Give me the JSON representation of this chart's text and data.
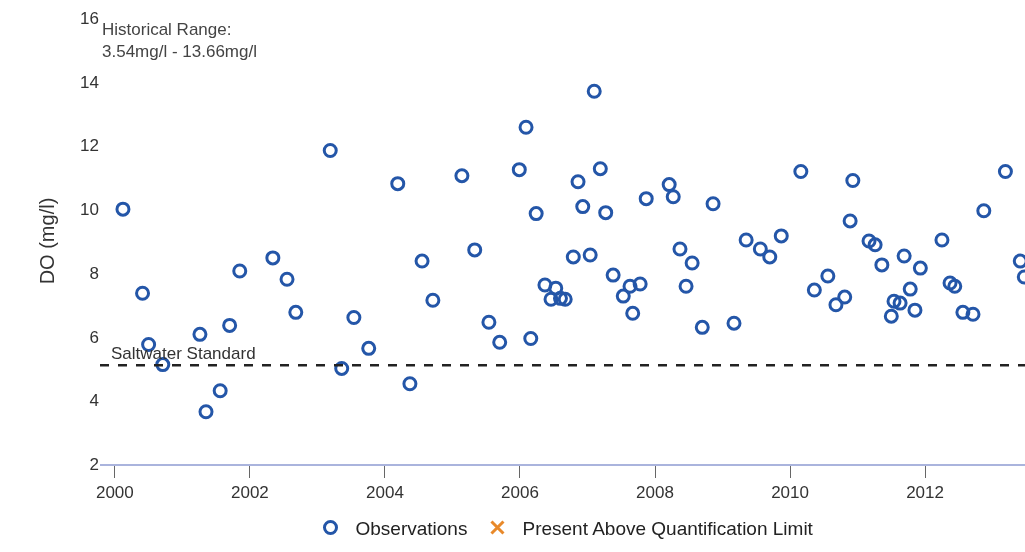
{
  "chart_data": {
    "type": "scatter",
    "ylabel": "DO (mg/l)",
    "annotations": [
      "Historical Range:\n3.54mg/l - 13.66mg/l"
    ],
    "xlim": [
      1999.78,
      2013.48
    ],
    "xticks": [
      2000,
      2002,
      2004,
      2006,
      2008,
      2010,
      2012
    ],
    "ylim": [
      2,
      16
    ],
    "yticks": [
      2,
      4,
      6,
      8,
      10,
      12,
      14,
      16
    ],
    "grid": false,
    "legend": "bottom",
    "marker": "circle",
    "ref_lines": [
      {
        "axis": "y",
        "value": 5.1,
        "label": "Saltwater Standard",
        "color": "#222222",
        "line_style": "dashed"
      }
    ],
    "series": [
      {
        "name": "Observations",
        "color": "#2456a8",
        "x": [
          2000.12,
          2000.41,
          2000.5,
          2000.71,
          2001.26,
          2001.35,
          2001.56,
          2001.7,
          2001.85,
          2002.34,
          2002.55,
          2002.68,
          2003.19,
          2003.36,
          2003.54,
          2003.76,
          2004.19,
          2004.37,
          2004.55,
          2004.71,
          2005.14,
          2005.33,
          2005.54,
          2005.7,
          2005.99,
          2006.09,
          2006.16,
          2006.24,
          2006.37,
          2006.46,
          2006.53,
          2006.6,
          2006.67,
          2006.79,
          2006.86,
          2006.93,
          2007.04,
          2007.1,
          2007.19,
          2007.27,
          2007.38,
          2007.53,
          2007.63,
          2007.67,
          2007.78,
          2007.87,
          2008.21,
          2008.27,
          2008.37,
          2008.46,
          2008.55,
          2008.7,
          2008.86,
          2009.17,
          2009.35,
          2009.56,
          2009.7,
          2009.87,
          2010.16,
          2010.36,
          2010.56,
          2010.68,
          2010.81,
          2010.89,
          2010.93,
          2011.17,
          2011.26,
          2011.36,
          2011.5,
          2011.54,
          2011.63,
          2011.69,
          2011.78,
          2011.85,
          2011.93,
          2012.25,
          2012.37,
          2012.44,
          2012.56,
          2012.71,
          2012.87,
          2013.19,
          2013.41,
          2013.47
        ],
        "values": [
          10.0,
          7.36,
          5.75,
          5.12,
          6.07,
          3.64,
          4.3,
          6.35,
          8.06,
          8.47,
          7.8,
          6.76,
          11.84,
          5.0,
          6.6,
          5.63,
          10.8,
          4.52,
          8.37,
          7.14,
          11.05,
          8.72,
          6.45,
          5.82,
          11.24,
          12.57,
          5.94,
          9.86,
          7.62,
          7.17,
          7.52,
          7.2,
          7.17,
          8.5,
          10.86,
          10.08,
          8.56,
          13.7,
          11.27,
          9.89,
          7.93,
          7.27,
          7.58,
          6.73,
          7.65,
          10.33,
          10.77,
          10.39,
          8.75,
          7.58,
          8.31,
          6.29,
          10.17,
          6.42,
          9.03,
          8.75,
          8.5,
          9.16,
          11.18,
          7.46,
          7.9,
          7.0,
          7.24,
          9.63,
          10.9,
          9.0,
          8.88,
          8.25,
          6.64,
          7.11,
          7.05,
          8.53,
          7.49,
          6.83,
          8.15,
          9.03,
          7.68,
          7.58,
          6.76,
          6.7,
          9.95,
          11.18,
          8.37,
          7.87
        ]
      },
      {
        "name": "Present Above Quantification Limit",
        "color": "#e8892a",
        "marker": "cross",
        "values": [
          null
        ]
      }
    ]
  }
}
